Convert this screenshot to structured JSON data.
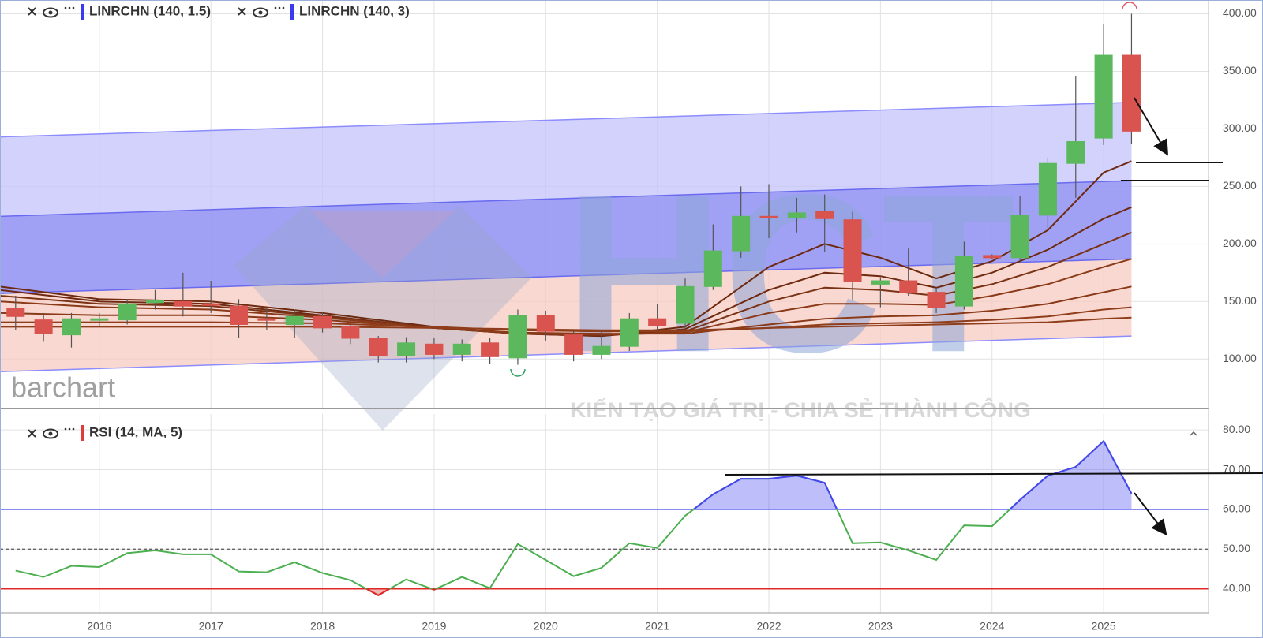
{
  "chart_data": [
    {
      "type": "candlestick",
      "xlim": [
        2015.11,
        2025.94
      ],
      "ylim": [
        57,
        412
      ],
      "yticks": [
        {
          "value": 100,
          "label": "100.00"
        },
        {
          "value": 150,
          "label": "150.00"
        },
        {
          "value": 200,
          "label": "200.00"
        },
        {
          "value": 250,
          "label": "250.00"
        },
        {
          "value": 300,
          "label": "300.00"
        },
        {
          "value": 350,
          "label": "350.00"
        },
        {
          "value": 400,
          "label": "400.00"
        }
      ],
      "up_color": "#5cb85c",
      "down_color": "#d9534f",
      "x": [
        2015.25,
        2015.5,
        2015.75,
        2016,
        2016.25,
        2016.5,
        2016.75,
        2017,
        2017.25,
        2017.5,
        2017.75,
        2018,
        2018.25,
        2018.5,
        2018.75,
        2019,
        2019.25,
        2019.5,
        2019.75,
        2020,
        2020.25,
        2020.5,
        2020.75,
        2021,
        2021.25,
        2021.5,
        2021.75,
        2022,
        2022.25,
        2022.5,
        2022.75,
        2023,
        2023.25,
        2023.5,
        2023.75,
        2024,
        2024.25,
        2024.5,
        2024.75,
        2025,
        2025.25
      ],
      "open": [
        144,
        134,
        121,
        134,
        134,
        149,
        150,
        148,
        146,
        135,
        130,
        137,
        128,
        118,
        103,
        113,
        104,
        114,
        101,
        138,
        121,
        104,
        111,
        135,
        131,
        163,
        194,
        224,
        223,
        228,
        221,
        165,
        168,
        158,
        146,
        190,
        188,
        225,
        270,
        292,
        364
      ],
      "high": [
        155,
        140,
        140,
        140,
        152,
        160,
        175,
        168,
        152,
        145,
        143,
        141,
        130,
        120,
        119,
        118,
        117,
        118,
        143,
        142,
        124,
        125,
        140,
        148,
        170,
        217,
        250,
        252,
        240,
        243,
        228,
        171,
        196,
        162,
        202,
        191,
        242,
        275,
        346,
        391,
        400
      ],
      "low": [
        125,
        115,
        110,
        128,
        130,
        143,
        137,
        140,
        118,
        125,
        118,
        123,
        113,
        97,
        97,
        100,
        98,
        96,
        95,
        116,
        98,
        100,
        107,
        125,
        127,
        160,
        188,
        205,
        210,
        193,
        151,
        145,
        155,
        140,
        143,
        187,
        185,
        214,
        240,
        286,
        287
      ],
      "close": [
        137,
        122,
        135,
        135,
        148,
        151,
        146,
        147,
        130,
        134,
        137,
        127,
        118,
        103,
        114,
        104,
        113,
        102,
        138,
        124,
        104,
        111,
        135,
        129,
        163,
        194,
        224,
        223,
        227,
        222,
        167,
        168,
        158,
        145,
        189,
        188,
        225,
        270,
        289,
        364,
        298
      ],
      "channel_x": [
        2015.11,
        2025.25
      ],
      "channels": [
        {
          "name": "LINRCHN (140, 1.5)",
          "color": "#6a6af0",
          "fill": "#8f8ff2",
          "upper": [
            224,
            255
          ],
          "lower": [
            157,
            187
          ]
        },
        {
          "name": "LINRCHN (140, 3)",
          "color": "#8c8cff",
          "fill": "#c3c3fb",
          "upper": [
            293,
            323
          ],
          "lower": [
            89,
            120
          ]
        }
      ],
      "lower_fill": "#f5cbc0",
      "ma_x": [
        2015.11,
        2016,
        2017,
        2018,
        2019,
        2019.75,
        2020.5,
        2021.25,
        2022,
        2022.5,
        2023,
        2023.5,
        2024,
        2024.5,
        2025,
        2025.25
      ],
      "moving_averages": [
        {
          "color": "#6e2a10",
          "values": [
            163,
            152,
            150,
            140,
            128,
            122,
            120,
            128,
            180,
            200,
            188,
            170,
            185,
            212,
            262,
            272
          ]
        },
        {
          "color": "#6e2a10",
          "values": [
            160,
            150,
            148,
            138,
            127,
            122,
            120,
            126,
            160,
            175,
            172,
            162,
            175,
            195,
            222,
            232
          ]
        },
        {
          "color": "#7a3214",
          "values": [
            155,
            148,
            146,
            137,
            127,
            122,
            121,
            124,
            150,
            162,
            160,
            155,
            165,
            180,
            200,
            210
          ]
        },
        {
          "color": "#8a3a18",
          "values": [
            150,
            145,
            143,
            136,
            127,
            122,
            121,
            123,
            140,
            148,
            148,
            147,
            155,
            165,
            180,
            187
          ]
        },
        {
          "color": "#8a3a18",
          "values": [
            140,
            138,
            138,
            134,
            127,
            123,
            122,
            122,
            130,
            135,
            137,
            138,
            142,
            148,
            158,
            163
          ]
        },
        {
          "color": "#8f3d1a",
          "values": [
            132,
            132,
            132,
            131,
            128,
            125,
            124,
            124,
            127,
            130,
            131,
            132,
            134,
            137,
            143,
            145
          ]
        },
        {
          "color": "#8f3d1a",
          "values": [
            128,
            128,
            128,
            128,
            127,
            126,
            125,
            125,
            127,
            128,
            129,
            130,
            131,
            132,
            135,
            136
          ]
        }
      ]
    },
    {
      "type": "line",
      "xlim": [
        2015.11,
        2025.94
      ],
      "xticks": [
        2016,
        2017,
        2018,
        2019,
        2020,
        2021,
        2022,
        2023,
        2024,
        2025
      ],
      "ylim": [
        34,
        84
      ],
      "yticks": [
        {
          "value": 40,
          "label": "40.00"
        },
        {
          "value": 50,
          "label": "50.00"
        },
        {
          "value": 60,
          "label": "60.00"
        },
        {
          "value": 70,
          "label": "70.00"
        },
        {
          "value": 80,
          "label": "80.00"
        }
      ],
      "levels": [
        {
          "value": 60,
          "color": "#4646f0",
          "fill": "above"
        },
        {
          "value": 50,
          "color": "#666666",
          "dash": true
        },
        {
          "value": 40,
          "color": "#e02828",
          "fill": "below"
        }
      ],
      "series": [
        {
          "name": "RSI (14, MA, 5)",
          "color": "#4caf50",
          "x": [
            2015.25,
            2015.5,
            2015.75,
            2016,
            2016.25,
            2016.5,
            2016.75,
            2017,
            2017.25,
            2017.5,
            2017.75,
            2018,
            2018.25,
            2018.5,
            2018.75,
            2019,
            2019.25,
            2019.5,
            2019.75,
            2020,
            2020.25,
            2020.5,
            2020.75,
            2021,
            2021.25,
            2021.5,
            2021.75,
            2022,
            2022.25,
            2022.5,
            2022.75,
            2023,
            2023.25,
            2023.5,
            2023.75,
            2024,
            2024.25,
            2024.5,
            2024.75,
            2025,
            2025.25
          ],
          "values": [
            44.6,
            43,
            45.8,
            45.5,
            49,
            49.7,
            48.7,
            48.7,
            44.4,
            44.2,
            46.7,
            44,
            42.2,
            38.4,
            42.4,
            39.8,
            43,
            40.2,
            51.3,
            47.3,
            43.2,
            45.3,
            51.5,
            50.3,
            58.4,
            63.8,
            67.7,
            67.7,
            68.5,
            66.7,
            51.5,
            51.7,
            49.7,
            47.3,
            56,
            55.8,
            62.4,
            68.5,
            70.7,
            77.2,
            64
          ]
        }
      ]
    }
  ],
  "brand": "barchart",
  "watermark": {
    "logo": "HCT",
    "slogan": "KIẾN TẠO GIÁ TRỊ - CHIA SẺ THÀNH CÔNG"
  }
}
